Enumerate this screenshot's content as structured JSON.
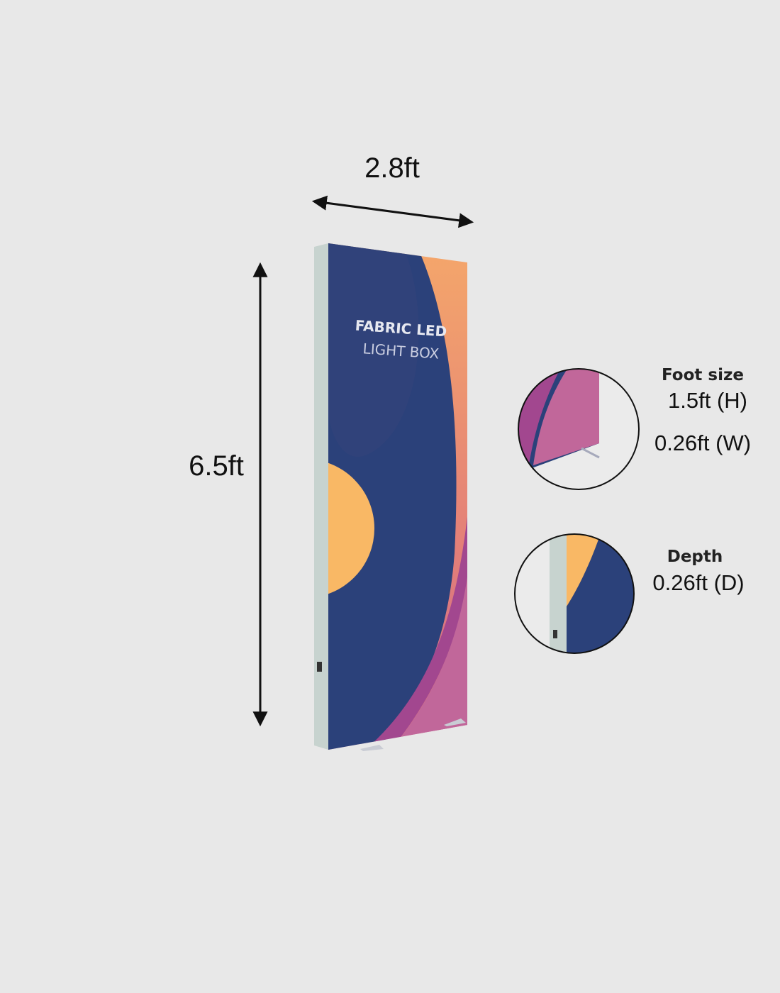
{
  "dimensions": {
    "width": "2.8ft",
    "height": "6.5ft"
  },
  "product_print": {
    "line1": "FABRIC LED",
    "line2": "LIGHT BOX"
  },
  "foot_detail": {
    "title": "Foot size",
    "height_value": "1.5ft (H)",
    "width_value": "0.26ft (W)"
  },
  "depth_detail": {
    "title": "Depth",
    "depth_value": "0.26ft (D)"
  },
  "colors": {
    "background": "#e8e8e8",
    "navy": "#2b417a",
    "orange": "#f4a86a",
    "yellow": "#f9b865",
    "pink": "#c1679a",
    "magenta": "#a2478f",
    "frame": "#c7d3cf"
  }
}
